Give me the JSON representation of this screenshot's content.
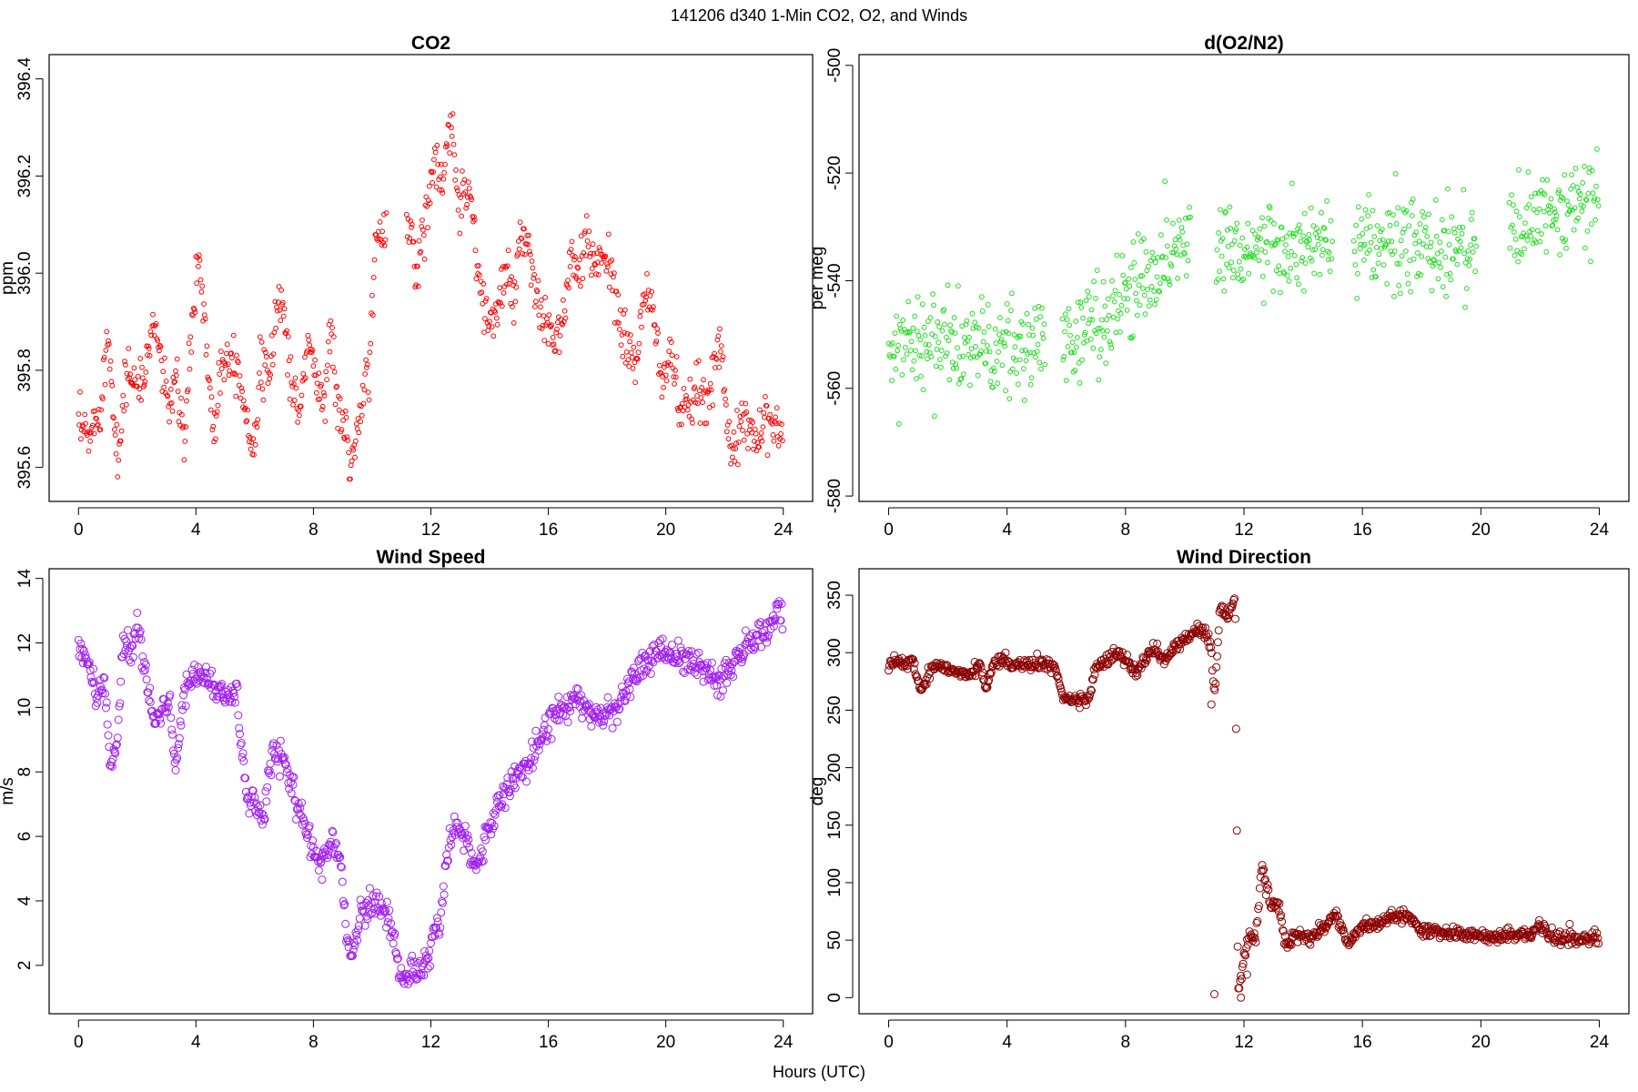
{
  "figure": {
    "title": "141206   d340   1-Min CO2, O2, and Winds",
    "xlabel": "Hours (UTC)"
  },
  "chart_data": [
    {
      "id": "co2",
      "type": "scatter",
      "title": "CO2",
      "xlabel": "",
      "ylabel": "ppm",
      "xlim": [
        -1,
        25
      ],
      "ylim": [
        395.53,
        396.45
      ],
      "xticks": [
        0,
        4,
        8,
        12,
        16,
        20,
        24
      ],
      "yticks": [
        395.6,
        395.8,
        396.0,
        396.2,
        396.4
      ],
      "ytick_labels": [
        "395.6",
        "395.8",
        "396.0",
        "396.2",
        "396.4"
      ],
      "color": "#ff0000",
      "marker_radius": 2.4,
      "gap": [
        10.5,
        11.15
      ],
      "segments": [
        [
          0.0,
          395.68
        ],
        [
          0.4,
          395.66
        ],
        [
          0.8,
          395.75
        ],
        [
          1.0,
          395.88
        ],
        [
          1.2,
          395.72
        ],
        [
          1.4,
          395.62
        ],
        [
          1.6,
          395.8
        ],
        [
          1.9,
          395.78
        ],
        [
          2.2,
          395.76
        ],
        [
          2.5,
          395.9
        ],
        [
          2.8,
          395.84
        ],
        [
          3.0,
          395.72
        ],
        [
          3.3,
          395.78
        ],
        [
          3.6,
          395.65
        ],
        [
          3.9,
          395.92
        ],
        [
          4.1,
          396.04
        ],
        [
          4.3,
          395.9
        ],
        [
          4.6,
          395.66
        ],
        [
          4.8,
          395.8
        ],
        [
          5.1,
          395.84
        ],
        [
          5.4,
          395.82
        ],
        [
          5.9,
          395.64
        ],
        [
          6.2,
          395.8
        ],
        [
          6.5,
          395.78
        ],
        [
          6.8,
          395.96
        ],
        [
          7.0,
          395.92
        ],
        [
          7.2,
          395.8
        ],
        [
          7.5,
          395.7
        ],
        [
          7.8,
          395.86
        ],
        [
          8.0,
          395.82
        ],
        [
          8.3,
          395.72
        ],
        [
          8.6,
          395.9
        ],
        [
          8.8,
          395.72
        ],
        [
          9.1,
          395.68
        ],
        [
          9.3,
          395.6
        ],
        [
          9.6,
          395.7
        ],
        [
          9.9,
          395.82
        ],
        [
          10.1,
          396.04
        ],
        [
          10.3,
          396.08
        ],
        [
          11.3,
          396.12
        ],
        [
          11.5,
          395.98
        ],
        [
          11.8,
          396.12
        ],
        [
          12.1,
          396.24
        ],
        [
          12.4,
          396.18
        ],
        [
          12.7,
          396.3
        ],
        [
          13.0,
          396.14
        ],
        [
          13.3,
          396.2
        ],
        [
          13.5,
          396.06
        ],
        [
          13.8,
          395.92
        ],
        [
          14.2,
          395.9
        ],
        [
          14.5,
          396.0
        ],
        [
          14.8,
          395.94
        ],
        [
          15.0,
          396.06
        ],
        [
          15.3,
          396.04
        ],
        [
          15.8,
          395.9
        ],
        [
          16.2,
          395.86
        ],
        [
          16.5,
          395.9
        ],
        [
          16.8,
          396.04
        ],
        [
          17.0,
          395.98
        ],
        [
          17.3,
          396.06
        ],
        [
          17.6,
          396.02
        ],
        [
          18.0,
          396.06
        ],
        [
          18.3,
          395.92
        ],
        [
          18.6,
          395.86
        ],
        [
          19.0,
          395.82
        ],
        [
          19.3,
          395.96
        ],
        [
          19.6,
          395.9
        ],
        [
          19.9,
          395.78
        ],
        [
          20.2,
          395.84
        ],
        [
          20.5,
          395.7
        ],
        [
          20.8,
          395.72
        ],
        [
          21.1,
          395.76
        ],
        [
          21.4,
          395.72
        ],
        [
          21.6,
          395.82
        ],
        [
          21.9,
          395.86
        ],
        [
          22.2,
          395.62
        ],
        [
          22.5,
          395.66
        ],
        [
          22.8,
          395.7
        ],
        [
          23.1,
          395.66
        ],
        [
          23.4,
          395.72
        ],
        [
          23.8,
          395.66
        ]
      ],
      "noise": 0.05
    },
    {
      "id": "o2n2",
      "type": "scatter",
      "title": "d(O2/N2)",
      "xlabel": "",
      "ylabel": "per meg",
      "xlim": [
        -1,
        25
      ],
      "ylim": [
        -581,
        -498
      ],
      "xticks": [
        0,
        4,
        8,
        12,
        16,
        20,
        24
      ],
      "yticks": [
        -580,
        -560,
        -540,
        -520,
        -500
      ],
      "ytick_labels": [
        "-580",
        "-560",
        "-540",
        "-520",
        "-500"
      ],
      "color": "#22dd22",
      "marker_radius": 2.4,
      "gaps": [
        [
          5.3,
          5.85
        ],
        [
          10.2,
          11.05
        ],
        [
          15.0,
          15.7
        ],
        [
          19.85,
          20.95
        ]
      ],
      "segments": [
        [
          0.0,
          -552
        ],
        [
          1.0,
          -550
        ],
        [
          2.0,
          -552
        ],
        [
          3.0,
          -552
        ],
        [
          4.0,
          -554
        ],
        [
          5.2,
          -551
        ],
        [
          6.0,
          -551
        ],
        [
          7.0,
          -548
        ],
        [
          8.0,
          -543
        ],
        [
          9.0,
          -537
        ],
        [
          10.2,
          -532
        ],
        [
          11.1,
          -533
        ],
        [
          12.5,
          -534
        ],
        [
          13.5,
          -535
        ],
        [
          14.9,
          -533
        ],
        [
          15.8,
          -535
        ],
        [
          17.0,
          -533
        ],
        [
          18.0,
          -534
        ],
        [
          19.8,
          -533
        ],
        [
          21.0,
          -531
        ],
        [
          22.0,
          -529
        ],
        [
          23.0,
          -527
        ],
        [
          23.9,
          -524
        ]
      ],
      "noise": 8
    },
    {
      "id": "wind_speed",
      "type": "scatter",
      "title": "Wind Speed",
      "xlabel": "",
      "ylabel": "m/s",
      "xlim": [
        -1,
        25
      ],
      "ylim": [
        0.5,
        14.3
      ],
      "xticks": [
        0,
        4,
        8,
        12,
        16,
        20,
        24
      ],
      "yticks": [
        2,
        4,
        6,
        8,
        10,
        12,
        14
      ],
      "ytick_labels": [
        "2",
        "4",
        "6",
        "8",
        "10",
        "12",
        "14"
      ],
      "color": "#a020f0",
      "marker_radius": 4,
      "segments": [
        [
          0.0,
          12.0
        ],
        [
          0.3,
          11.4
        ],
        [
          0.6,
          10.4
        ],
        [
          0.9,
          10.6
        ],
        [
          1.1,
          8.2
        ],
        [
          1.3,
          8.6
        ],
        [
          1.5,
          12.0
        ],
        [
          1.8,
          11.6
        ],
        [
          2.0,
          12.6
        ],
        [
          2.3,
          11.0
        ],
        [
          2.6,
          9.6
        ],
        [
          2.8,
          9.8
        ],
        [
          3.1,
          10.2
        ],
        [
          3.3,
          7.8
        ],
        [
          3.6,
          10.6
        ],
        [
          3.9,
          11.0
        ],
        [
          4.3,
          11.0
        ],
        [
          4.6,
          10.6
        ],
        [
          5.0,
          10.4
        ],
        [
          5.4,
          10.4
        ],
        [
          5.7,
          7.2
        ],
        [
          6.0,
          7.0
        ],
        [
          6.3,
          6.6
        ],
        [
          6.6,
          8.6
        ],
        [
          7.0,
          8.4
        ],
        [
          7.4,
          7.2
        ],
        [
          7.7,
          6.4
        ],
        [
          8.0,
          5.6
        ],
        [
          8.3,
          5.0
        ],
        [
          8.6,
          5.8
        ],
        [
          8.9,
          5.6
        ],
        [
          9.1,
          3.2
        ],
        [
          9.3,
          2.2
        ],
        [
          9.6,
          3.6
        ],
        [
          9.9,
          4.0
        ],
        [
          10.3,
          3.8
        ],
        [
          10.6,
          3.4
        ],
        [
          10.9,
          2.0
        ],
        [
          11.1,
          1.4
        ],
        [
          11.3,
          2.0
        ],
        [
          11.6,
          1.8
        ],
        [
          11.9,
          2.2
        ],
        [
          12.1,
          3.2
        ],
        [
          12.3,
          3.0
        ],
        [
          12.5,
          5.0
        ],
        [
          12.8,
          6.2
        ],
        [
          13.2,
          6.0
        ],
        [
          13.5,
          5.0
        ],
        [
          13.9,
          6.0
        ],
        [
          14.3,
          7.0
        ],
        [
          14.8,
          7.8
        ],
        [
          15.3,
          8.2
        ],
        [
          15.8,
          9.2
        ],
        [
          16.2,
          9.8
        ],
        [
          16.6,
          10.0
        ],
        [
          17.0,
          10.2
        ],
        [
          17.5,
          9.8
        ],
        [
          18.0,
          9.8
        ],
        [
          18.4,
          10.0
        ],
        [
          18.8,
          10.8
        ],
        [
          19.3,
          11.4
        ],
        [
          19.8,
          11.8
        ],
        [
          20.3,
          11.6
        ],
        [
          20.8,
          11.4
        ],
        [
          21.3,
          11.2
        ],
        [
          21.8,
          10.8
        ],
        [
          22.3,
          11.4
        ],
        [
          22.8,
          12.0
        ],
        [
          23.3,
          12.2
        ],
        [
          23.9,
          13.0
        ]
      ],
      "noise": 0.4
    },
    {
      "id": "wind_direction",
      "type": "scatter",
      "title": "Wind Direction",
      "xlabel": "",
      "ylabel": "deg",
      "xlim": [
        -1,
        25
      ],
      "ylim": [
        -14,
        373
      ],
      "xticks": [
        0,
        4,
        8,
        12,
        16,
        20,
        24
      ],
      "yticks": [
        0,
        50,
        100,
        150,
        200,
        250,
        300,
        350
      ],
      "ytick_labels": [
        "0",
        "50",
        "100",
        "150",
        "200",
        "250",
        "300",
        "350"
      ],
      "color": "#8b0000",
      "marker_radius": 4,
      "segments": [
        [
          0.0,
          290
        ],
        [
          0.8,
          292
        ],
        [
          1.1,
          268
        ],
        [
          1.3,
          280
        ],
        [
          1.6,
          290
        ],
        [
          2.2,
          285
        ],
        [
          2.8,
          282
        ],
        [
          3.1,
          290
        ],
        [
          3.3,
          268
        ],
        [
          3.6,
          295
        ],
        [
          4.2,
          290
        ],
        [
          5.0,
          290
        ],
        [
          5.6,
          288
        ],
        [
          5.9,
          260
        ],
        [
          6.3,
          258
        ],
        [
          6.8,
          262
        ],
        [
          7.0,
          288
        ],
        [
          7.6,
          298
        ],
        [
          8.0,
          295
        ],
        [
          8.4,
          282
        ],
        [
          8.9,
          305
        ],
        [
          9.3,
          292
        ],
        [
          9.8,
          310
        ],
        [
          10.3,
          318
        ],
        [
          10.7,
          318
        ],
        [
          10.9,
          300
        ],
        [
          11.0,
          260
        ],
        [
          11.2,
          340
        ],
        [
          11.45,
          330
        ],
        [
          11.7,
          350
        ],
        [
          11.8,
          2
        ],
        [
          11.95,
          30
        ],
        [
          12.2,
          55
        ],
        [
          12.4,
          50
        ],
        [
          12.6,
          115
        ],
        [
          12.9,
          80
        ],
        [
          13.2,
          80
        ],
        [
          13.4,
          45
        ],
        [
          13.8,
          55
        ],
        [
          14.2,
          50
        ],
        [
          14.6,
          60
        ],
        [
          15.1,
          72
        ],
        [
          15.5,
          48
        ],
        [
          16.0,
          62
        ],
        [
          16.5,
          62
        ],
        [
          17.0,
          72
        ],
        [
          17.5,
          72
        ],
        [
          18.0,
          58
        ],
        [
          18.5,
          58
        ],
        [
          19.0,
          56
        ],
        [
          19.5,
          56
        ],
        [
          20.0,
          52
        ],
        [
          20.5,
          52
        ],
        [
          21.0,
          54
        ],
        [
          21.5,
          54
        ],
        [
          22.0,
          64
        ],
        [
          22.5,
          50
        ],
        [
          23.0,
          52
        ],
        [
          23.5,
          50
        ],
        [
          23.9,
          52
        ]
      ],
      "extra_points": [
        [
          10.9,
          255
        ],
        [
          11.0,
          3
        ],
        [
          11.9,
          0
        ],
        [
          12.1,
          20
        ],
        [
          23.0,
          64
        ]
      ],
      "noise": 5
    }
  ]
}
